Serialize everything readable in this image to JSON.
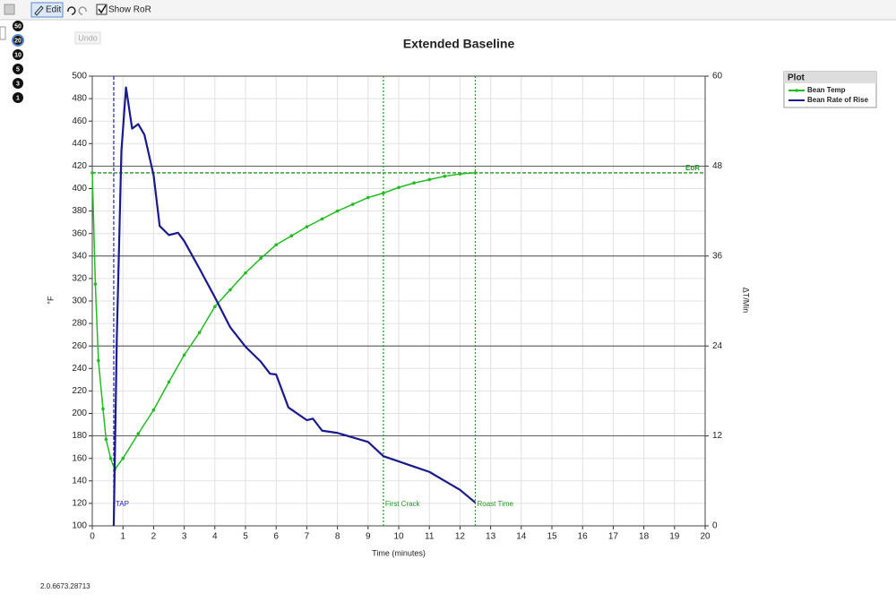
{
  "ui": {
    "edit": "Edit",
    "show_ror": "Show RoR",
    "undo": "Undo",
    "zoom": [
      "50",
      "20",
      "10",
      "5",
      "3",
      "1"
    ],
    "version": "2.0.6673.28713"
  },
  "chart_data": {
    "type": "line",
    "title": "Extended Baseline",
    "xlabel": "Time (minutes)",
    "ylabel": "°F",
    "y2label": "ΔT/Min",
    "legend_title": "Plot",
    "legend": "top-right",
    "grid": true,
    "xlim": [
      0,
      20
    ],
    "xticks": [
      0,
      1,
      2,
      3,
      4,
      5,
      6,
      7,
      8,
      9,
      10,
      11,
      12,
      13,
      14,
      15,
      16,
      17,
      18,
      19,
      20
    ],
    "ylim": [
      100,
      500
    ],
    "yticks": [
      100,
      120,
      140,
      160,
      180,
      200,
      220,
      240,
      260,
      280,
      300,
      320,
      340,
      360,
      380,
      400,
      420,
      440,
      460,
      480,
      500
    ],
    "y2lim": [
      0,
      60
    ],
    "y2ticks": [
      0,
      12,
      24,
      36,
      48,
      60
    ],
    "series": [
      {
        "name": "Bean Temp",
        "color": "#22bb22",
        "markers": true,
        "x": [
          0,
          0.1,
          0.2,
          0.35,
          0.45,
          0.6,
          0.73,
          1,
          1.5,
          2,
          2.5,
          3,
          3.5,
          4,
          4.5,
          5,
          5.5,
          6,
          6.5,
          7,
          7.5,
          8,
          8.5,
          9,
          9.5,
          10,
          10.5,
          11,
          11.5,
          12,
          12.5
        ],
        "values": [
          414,
          315,
          247,
          204,
          177,
          160,
          150,
          160,
          182,
          203,
          228,
          252,
          272,
          295,
          310,
          325,
          338,
          350,
          358,
          366,
          373,
          380,
          386,
          392,
          396,
          401,
          405,
          408,
          411,
          413,
          414
        ]
      },
      {
        "name": "Bean Rate of Rise",
        "color": "#1a1a8c",
        "axis": "y2",
        "markers": false,
        "x": [
          0.7,
          0.8,
          0.95,
          1.1,
          1.3,
          1.5,
          1.7,
          2,
          2.2,
          2.5,
          2.8,
          3,
          3.5,
          4,
          4.5,
          5,
          5.5,
          5.8,
          6,
          6.4,
          7,
          7.2,
          7.5,
          8,
          8.5,
          9,
          9.5,
          10,
          10.5,
          11,
          11.5,
          12,
          12.5
        ],
        "values": [
          0,
          25,
          50,
          58.5,
          53,
          53.6,
          52.2,
          46.8,
          40,
          38.8,
          39.1,
          38,
          34.3,
          30.5,
          26.5,
          23.9,
          21.9,
          20.3,
          20.2,
          15.8,
          14.1,
          14.3,
          12.7,
          12.4,
          11.8,
          11.2,
          9.3,
          8.6,
          7.9,
          7.2,
          6,
          4.8,
          3.1
        ]
      }
    ],
    "vlines": [
      {
        "label": "TAP",
        "x": 0.7,
        "color": "#2222cc",
        "style": "dashed"
      },
      {
        "label": "First Crack",
        "x": 9.5,
        "color": "#229922",
        "style": "dotted"
      },
      {
        "label": "Roast Time",
        "x": 12.5,
        "color": "#229922",
        "style": "dotted"
      }
    ],
    "hlines": [
      {
        "label": "EoR",
        "y": 414,
        "color": "#229922",
        "style": "dashed"
      }
    ]
  }
}
